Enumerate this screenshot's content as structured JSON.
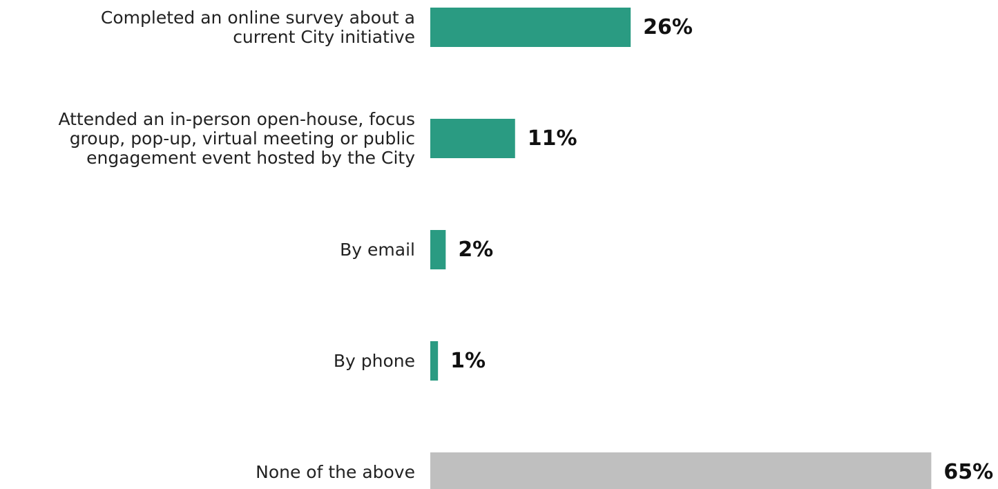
{
  "chart_data": {
    "type": "bar",
    "orientation": "horizontal",
    "categories": [
      [
        "Completed an online survey about a",
        "current City initiative"
      ],
      [
        "Attended an in-person open-house, focus",
        "group, pop-up, virtual meeting or public",
        "engagement event hosted by the City"
      ],
      [
        "By email"
      ],
      [
        "By phone"
      ],
      [
        "None of the above"
      ]
    ],
    "values": [
      26,
      11,
      2,
      1,
      65
    ],
    "value_labels": [
      "26%",
      "11%",
      "2%",
      "1%",
      "65%"
    ],
    "colors": [
      "#2a9b82",
      "#2a9b82",
      "#2a9b82",
      "#2a9b82",
      "#bfbfbf"
    ],
    "xlim": [
      0,
      100
    ],
    "grid": false,
    "legend": "none",
    "title": "",
    "xlabel": "",
    "ylabel": ""
  }
}
